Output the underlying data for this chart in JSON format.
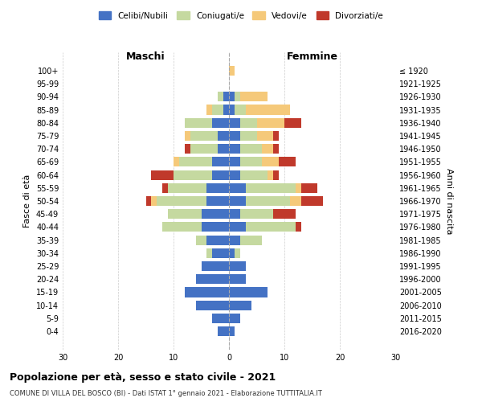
{
  "age_groups": [
    "0-4",
    "5-9",
    "10-14",
    "15-19",
    "20-24",
    "25-29",
    "30-34",
    "35-39",
    "40-44",
    "45-49",
    "50-54",
    "55-59",
    "60-64",
    "65-69",
    "70-74",
    "75-79",
    "80-84",
    "85-89",
    "90-94",
    "95-99",
    "100+"
  ],
  "birth_years": [
    "2016-2020",
    "2011-2015",
    "2006-2010",
    "2001-2005",
    "1996-2000",
    "1991-1995",
    "1986-1990",
    "1981-1985",
    "1976-1980",
    "1971-1975",
    "1966-1970",
    "1961-1965",
    "1956-1960",
    "1951-1955",
    "1946-1950",
    "1941-1945",
    "1936-1940",
    "1931-1935",
    "1926-1930",
    "1921-1925",
    "≤ 1920"
  ],
  "male_celibi": [
    2,
    3,
    6,
    8,
    6,
    5,
    3,
    4,
    5,
    5,
    4,
    4,
    3,
    3,
    2,
    2,
    3,
    1,
    1,
    0,
    0
  ],
  "male_coniugati": [
    0,
    0,
    0,
    0,
    0,
    0,
    1,
    2,
    7,
    6,
    9,
    7,
    7,
    6,
    5,
    5,
    5,
    2,
    1,
    0,
    0
  ],
  "male_vedovi": [
    0,
    0,
    0,
    0,
    0,
    0,
    0,
    0,
    0,
    0,
    1,
    0,
    0,
    1,
    0,
    1,
    0,
    1,
    0,
    0,
    0
  ],
  "male_divorziati": [
    0,
    0,
    0,
    0,
    0,
    0,
    0,
    0,
    0,
    0,
    1,
    1,
    4,
    0,
    1,
    0,
    0,
    0,
    0,
    0,
    0
  ],
  "female_celibi": [
    1,
    2,
    4,
    7,
    3,
    3,
    1,
    2,
    3,
    2,
    3,
    3,
    2,
    2,
    2,
    2,
    2,
    1,
    1,
    0,
    0
  ],
  "female_coniugati": [
    0,
    0,
    0,
    0,
    0,
    0,
    1,
    4,
    9,
    6,
    8,
    9,
    5,
    4,
    4,
    3,
    3,
    2,
    1,
    0,
    0
  ],
  "female_vedovi": [
    0,
    0,
    0,
    0,
    0,
    0,
    0,
    0,
    0,
    0,
    2,
    1,
    1,
    3,
    2,
    3,
    5,
    8,
    5,
    0,
    1
  ],
  "female_divorziati": [
    0,
    0,
    0,
    0,
    0,
    0,
    0,
    0,
    1,
    4,
    4,
    3,
    1,
    3,
    1,
    1,
    3,
    0,
    0,
    0,
    0
  ],
  "colors": {
    "celibi": "#4472c4",
    "coniugati": "#c5d9a0",
    "vedovi": "#f5c97a",
    "divorziati": "#c0392b"
  },
  "legend_labels": [
    "Celibi/Nubili",
    "Coniugati/e",
    "Vedovi/e",
    "Divorziati/e"
  ],
  "title": "Popolazione per età, sesso e stato civile - 2021",
  "subtitle": "COMUNE DI VILLA DEL BOSCO (BI) - Dati ISTAT 1° gennaio 2021 - Elaborazione TUTTITALIA.IT",
  "maschi_label": "Maschi",
  "femmine_label": "Femmine",
  "ylabel_left": "Fasce di età",
  "ylabel_right": "Anni di nascita",
  "xlim": 30,
  "bg_color": "#ffffff",
  "grid_color": "#cccccc"
}
